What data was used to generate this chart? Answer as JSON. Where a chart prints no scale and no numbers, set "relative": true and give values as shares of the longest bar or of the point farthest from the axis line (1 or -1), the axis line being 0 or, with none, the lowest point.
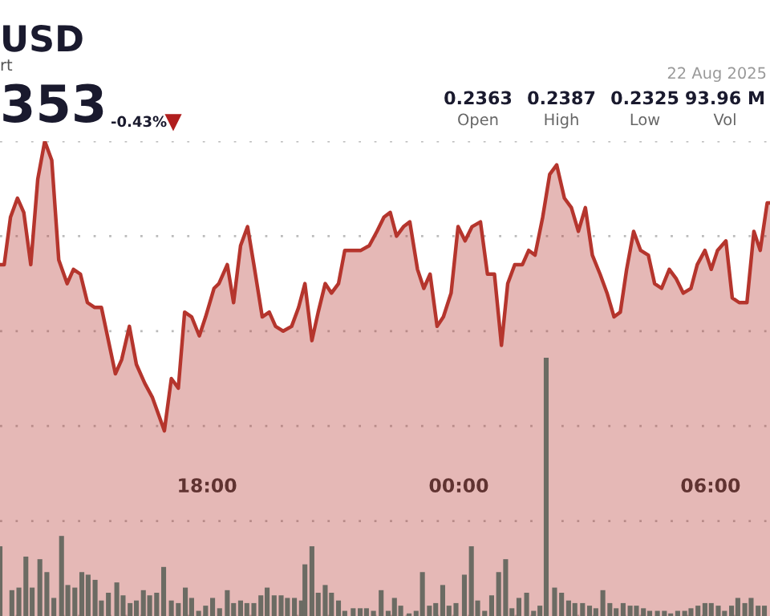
{
  "chart_data": {
    "type": "area",
    "title": "USD",
    "subtitle": "rt",
    "relative": true,
    "grid": "y",
    "tick_labels": "x",
    "legend": false,
    "annotations": [
      "353",
      "-0.43%",
      "0.2363",
      "Open",
      "0.2387",
      "High",
      "0.2325",
      "Low",
      "93.96 M",
      "Vol",
      "22 Aug 2025"
    ],
    "xlim": [
      "2025-08-21T13:04",
      "2025-08-22T07:25"
    ],
    "xticks": [
      {
        "value": "2025-08-21T18:00",
        "label": "18:00"
      },
      {
        "value": "2025-08-22T00:00",
        "label": "00:00"
      },
      {
        "value": "2025-08-22T06:00",
        "label": "06:00"
      }
    ],
    "series": [
      {
        "color": "#b5352d",
        "x": [
          "2025-08-21T13:04",
          "2025-08-21T13:10",
          "2025-08-21T13:19",
          "2025-08-21T13:29",
          "2025-08-21T13:38",
          "2025-08-21T13:48",
          "2025-08-21T13:58",
          "2025-08-21T14:08",
          "2025-08-21T14:18",
          "2025-08-21T14:28",
          "2025-08-21T14:40",
          "2025-08-21T14:49",
          "2025-08-21T14:59",
          "2025-08-21T15:09",
          "2025-08-21T15:19",
          "2025-08-21T15:29",
          "2025-08-21T15:49",
          "2025-08-21T15:58",
          "2025-08-21T16:09",
          "2025-08-21T16:19",
          "2025-08-21T16:31",
          "2025-08-21T16:42",
          "2025-08-21T16:59",
          "2025-08-21T17:09",
          "2025-08-21T17:19",
          "2025-08-21T17:28",
          "2025-08-21T17:38",
          "2025-08-21T17:49",
          "2025-08-21T17:58",
          "2025-08-21T18:10",
          "2025-08-21T18:17",
          "2025-08-21T18:29",
          "2025-08-21T18:38",
          "2025-08-21T18:48",
          "2025-08-21T18:58",
          "2025-08-21T19:07",
          "2025-08-21T19:19",
          "2025-08-21T19:29",
          "2025-08-21T19:38",
          "2025-08-21T19:49",
          "2025-08-21T20:01",
          "2025-08-21T20:11",
          "2025-08-21T20:20",
          "2025-08-21T20:30",
          "2025-08-21T20:39",
          "2025-08-21T20:49",
          "2025-08-21T20:58",
          "2025-08-21T21:08",
          "2025-08-21T21:17",
          "2025-08-21T21:29",
          "2025-08-21T21:40",
          "2025-08-21T21:52",
          "2025-08-21T22:03",
          "2025-08-21T22:13",
          "2025-08-21T22:22",
          "2025-08-21T22:31",
          "2025-08-21T22:41",
          "2025-08-21T22:50",
          "2025-08-21T23:01",
          "2025-08-21T23:10",
          "2025-08-21T23:19",
          "2025-08-21T23:29",
          "2025-08-21T23:38",
          "2025-08-21T23:49",
          "2025-08-21T23:59",
          "2025-08-22T00:09",
          "2025-08-22T00:19",
          "2025-08-22T00:31",
          "2025-08-22T00:41",
          "2025-08-22T00:51",
          "2025-08-22T01:01",
          "2025-08-22T01:10",
          "2025-08-22T01:20",
          "2025-08-22T01:31",
          "2025-08-22T01:40",
          "2025-08-22T01:49",
          "2025-08-22T02:00",
          "2025-08-22T02:10",
          "2025-08-22T02:20",
          "2025-08-22T02:31",
          "2025-08-22T02:41",
          "2025-08-22T02:51",
          "2025-08-22T03:01",
          "2025-08-22T03:11",
          "2025-08-22T03:22",
          "2025-08-22T03:32",
          "2025-08-22T03:42",
          "2025-08-22T03:51",
          "2025-08-22T04:00",
          "2025-08-22T04:10",
          "2025-08-22T04:20",
          "2025-08-22T04:31",
          "2025-08-22T04:40",
          "2025-08-22T04:50",
          "2025-08-22T05:01",
          "2025-08-22T05:11",
          "2025-08-22T05:21",
          "2025-08-22T05:32",
          "2025-08-22T05:41",
          "2025-08-22T05:52",
          "2025-08-22T06:01",
          "2025-08-22T06:10",
          "2025-08-22T06:22",
          "2025-08-22T06:31",
          "2025-08-22T06:41",
          "2025-08-22T06:52",
          "2025-08-22T07:02",
          "2025-08-22T07:11",
          "2025-08-22T07:21",
          "2025-08-22T07:25"
        ],
        "values": [
          0.74,
          0.74,
          0.84,
          0.88,
          0.85,
          0.74,
          0.92,
          1.0,
          0.96,
          0.75,
          0.7,
          0.73,
          0.72,
          0.66,
          0.65,
          0.65,
          0.51,
          0.54,
          0.61,
          0.53,
          0.49,
          0.46,
          0.39,
          0.5,
          0.48,
          0.64,
          0.63,
          0.59,
          0.63,
          0.69,
          0.7,
          0.74,
          0.66,
          0.78,
          0.82,
          0.74,
          0.63,
          0.64,
          0.61,
          0.6,
          0.61,
          0.65,
          0.7,
          0.58,
          0.64,
          0.7,
          0.68,
          0.7,
          0.77,
          0.77,
          0.77,
          0.78,
          0.81,
          0.84,
          0.85,
          0.8,
          0.82,
          0.83,
          0.73,
          0.69,
          0.72,
          0.61,
          0.63,
          0.68,
          0.82,
          0.79,
          0.82,
          0.83,
          0.72,
          0.72,
          0.57,
          0.7,
          0.74,
          0.74,
          0.77,
          0.76,
          0.84,
          0.93,
          0.95,
          0.88,
          0.86,
          0.81,
          0.86,
          0.76,
          0.72,
          0.68,
          0.63,
          0.64,
          0.73,
          0.81,
          0.77,
          0.76,
          0.7,
          0.69,
          0.73,
          0.71,
          0.68,
          0.69,
          0.74,
          0.77,
          0.73,
          0.77,
          0.79,
          0.67,
          0.66,
          0.66,
          0.81,
          0.77,
          0.87,
          0.87
        ]
      },
      {
        "type": "bar",
        "axis": "y2",
        "color": "#6b6b63",
        "x": [
          "2025-08-21T13:04",
          "2025-08-21T13:21",
          "2025-08-21T13:31",
          "2025-08-21T13:41",
          "2025-08-21T13:50",
          "2025-08-21T14:01",
          "2025-08-21T14:11",
          "2025-08-21T14:21",
          "2025-08-21T14:32",
          "2025-08-21T14:41",
          "2025-08-21T14:51",
          "2025-08-21T15:01",
          "2025-08-21T15:10",
          "2025-08-21T15:20",
          "2025-08-21T15:29",
          "2025-08-21T15:39",
          "2025-08-21T15:51",
          "2025-08-21T16:00",
          "2025-08-21T16:10",
          "2025-08-21T16:19",
          "2025-08-21T16:29",
          "2025-08-21T16:38",
          "2025-08-21T16:48",
          "2025-08-21T16:58",
          "2025-08-21T17:09",
          "2025-08-21T17:19",
          "2025-08-21T17:29",
          "2025-08-21T17:38",
          "2025-08-21T17:48",
          "2025-08-21T17:58",
          "2025-08-21T18:08",
          "2025-08-21T18:18",
          "2025-08-21T18:29",
          "2025-08-21T18:38",
          "2025-08-21T18:48",
          "2025-08-21T18:57",
          "2025-08-21T19:07",
          "2025-08-21T19:17",
          "2025-08-21T19:26",
          "2025-08-21T19:36",
          "2025-08-21T19:46",
          "2025-08-21T19:55",
          "2025-08-21T20:05",
          "2025-08-21T20:15",
          "2025-08-21T20:20",
          "2025-08-21T20:30",
          "2025-08-21T20:39",
          "2025-08-21T20:49",
          "2025-08-21T20:58",
          "2025-08-21T21:08",
          "2025-08-21T21:17",
          "2025-08-21T21:29",
          "2025-08-21T21:39",
          "2025-08-21T21:48",
          "2025-08-21T21:58",
          "2025-08-21T22:09",
          "2025-08-21T22:19",
          "2025-08-21T22:28",
          "2025-08-21T22:37",
          "2025-08-21T22:49",
          "2025-08-21T22:59",
          "2025-08-21T23:08",
          "2025-08-21T23:18",
          "2025-08-21T23:27",
          "2025-08-21T23:37",
          "2025-08-21T23:46",
          "2025-08-21T23:56",
          "2025-08-22T00:08",
          "2025-08-22T00:18",
          "2025-08-22T00:27",
          "2025-08-22T00:37",
          "2025-08-22T00:47",
          "2025-08-22T00:57",
          "2025-08-22T01:07",
          "2025-08-22T01:16",
          "2025-08-22T01:26",
          "2025-08-22T01:37",
          "2025-08-22T01:47",
          "2025-08-22T01:56",
          "2025-08-22T02:05",
          "2025-08-22T02:17",
          "2025-08-22T02:27",
          "2025-08-22T02:37",
          "2025-08-22T02:46",
          "2025-08-22T02:57",
          "2025-08-22T03:07",
          "2025-08-22T03:16",
          "2025-08-22T03:26",
          "2025-08-22T03:36",
          "2025-08-22T03:45",
          "2025-08-22T03:55",
          "2025-08-22T04:05",
          "2025-08-22T04:14",
          "2025-08-22T04:24",
          "2025-08-22T04:33",
          "2025-08-22T04:44",
          "2025-08-22T04:54",
          "2025-08-22T05:03",
          "2025-08-22T05:13",
          "2025-08-22T05:23",
          "2025-08-22T05:32",
          "2025-08-22T05:42",
          "2025-08-22T05:52",
          "2025-08-22T06:01",
          "2025-08-22T06:11",
          "2025-08-22T06:20",
          "2025-08-22T06:30",
          "2025-08-22T06:39",
          "2025-08-22T06:49",
          "2025-08-22T06:58",
          "2025-08-22T07:08",
          "2025-08-22T07:17"
        ],
        "values": [
          0.27,
          0.1,
          0.11,
          0.23,
          0.11,
          0.22,
          0.17,
          0.07,
          0.31,
          0.12,
          0.11,
          0.17,
          0.16,
          0.14,
          0.06,
          0.09,
          0.13,
          0.08,
          0.05,
          0.06,
          0.1,
          0.08,
          0.09,
          0.19,
          0.06,
          0.05,
          0.11,
          0.07,
          0.02,
          0.04,
          0.07,
          0.03,
          0.1,
          0.05,
          0.06,
          0.05,
          0.05,
          0.08,
          0.11,
          0.08,
          0.08,
          0.07,
          0.07,
          0.06,
          0.2,
          0.27,
          0.09,
          0.12,
          0.09,
          0.06,
          0.02,
          0.03,
          0.03,
          0.03,
          0.02,
          0.1,
          0.02,
          0.07,
          0.04,
          0.01,
          0.02,
          0.17,
          0.04,
          0.05,
          0.12,
          0.04,
          0.05,
          0.16,
          0.27,
          0.06,
          0.02,
          0.08,
          0.17,
          0.22,
          0.03,
          0.07,
          0.09,
          0.02,
          0.04,
          1.0,
          0.11,
          0.09,
          0.06,
          0.05,
          0.05,
          0.04,
          0.03,
          0.1,
          0.05,
          0.03,
          0.05,
          0.04,
          0.04,
          0.03,
          0.02,
          0.02,
          0.02,
          0.01,
          0.02,
          0.02,
          0.03,
          0.04,
          0.05,
          0.05,
          0.04,
          0.02,
          0.04,
          0.07,
          0.05,
          0.07,
          0.04,
          0.04
        ]
      }
    ]
  }
}
